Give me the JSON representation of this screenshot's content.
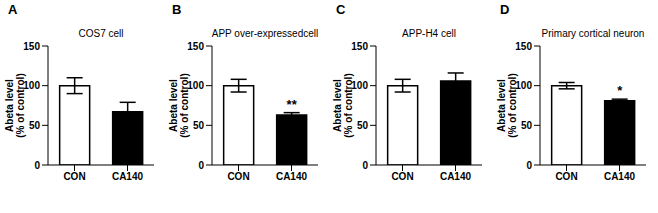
{
  "chart_data": [
    {
      "type": "bar",
      "panel": "A",
      "title": "COS7 cell",
      "y_label": "Abeta level\n(% of control)",
      "categories": [
        "CON",
        "CA140"
      ],
      "values": [
        100,
        67
      ],
      "errors": [
        10,
        12
      ],
      "colors": [
        "#ffffff",
        "#000000"
      ],
      "ylim": [
        0,
        150
      ],
      "yticks": [
        0,
        50,
        100,
        150
      ]
    },
    {
      "type": "bar",
      "panel": "B",
      "title": "APP over-expressedcell",
      "y_label": "Abeta level\n(% of control)",
      "categories": [
        "CON",
        "CA140"
      ],
      "values": [
        100,
        63
      ],
      "errors": [
        8,
        3
      ],
      "colors": [
        "#ffffff",
        "#000000"
      ],
      "ylim": [
        0,
        150
      ],
      "yticks": [
        0,
        50,
        100,
        150
      ],
      "annotations": [
        null,
        "**"
      ]
    },
    {
      "type": "bar",
      "panel": "C",
      "title": "APP-H4 cell",
      "y_label": "Abeta level\n(% of control)",
      "categories": [
        "CON",
        "CA140"
      ],
      "values": [
        100,
        106
      ],
      "errors": [
        8,
        10
      ],
      "colors": [
        "#ffffff",
        "#000000"
      ],
      "ylim": [
        0,
        150
      ],
      "yticks": [
        0,
        50,
        100,
        150
      ]
    },
    {
      "type": "bar",
      "panel": "D",
      "title": "Primary cortical neuron",
      "y_label": "Abeta level\n(% of control)",
      "categories": [
        "CON",
        "CA140"
      ],
      "values": [
        100,
        81
      ],
      "errors": [
        4,
        2
      ],
      "colors": [
        "#ffffff",
        "#000000"
      ],
      "ylim": [
        0,
        150
      ],
      "yticks": [
        0,
        50,
        100,
        150
      ],
      "annotations": [
        null,
        "*"
      ]
    }
  ]
}
